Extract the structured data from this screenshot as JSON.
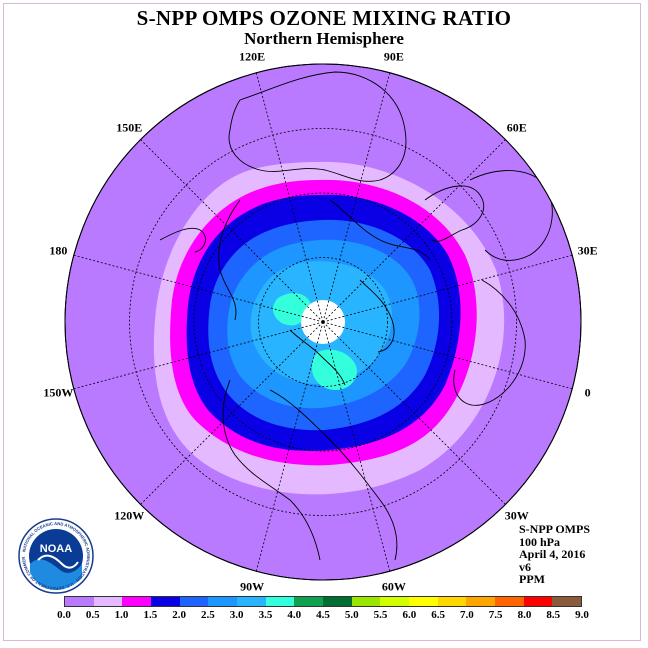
{
  "title": "S-NPP OMPS OZONE MIXING RATIO",
  "subtitle": "Northern Hemisphere",
  "lon_labels": [
    {
      "text": "90E",
      "deg": 75
    },
    {
      "text": "60E",
      "deg": 45
    },
    {
      "text": "30E",
      "deg": 15
    },
    {
      "text": "0",
      "deg": -15
    },
    {
      "text": "30W",
      "deg": -45
    },
    {
      "text": "60W",
      "deg": -75
    },
    {
      "text": "90W",
      "deg": -105
    },
    {
      "text": "120W",
      "deg": -135
    },
    {
      "text": "150W",
      "deg": -165
    },
    {
      "text": "180",
      "deg": 165
    },
    {
      "text": "150E",
      "deg": 135
    },
    {
      "text": "120E",
      "deg": 105
    }
  ],
  "info": {
    "instrument": "S-NPP OMPS",
    "pressure": "100 hPa",
    "date": "April 4, 2016",
    "version": "v6",
    "units": "PPM"
  },
  "logo_text": "NOAA",
  "logo_ring_text": "NATIONAL OCEANIC AND ATMOSPHERIC ADMINISTRATION · U.S. DEPARTMENT OF COMMERCE",
  "colorbar": {
    "labels": [
      "0.0",
      "0.5",
      "1.0",
      "1.5",
      "2.0",
      "2.5",
      "3.0",
      "3.5",
      "4.0",
      "4.5",
      "5.0",
      "5.5",
      "6.0",
      "6.5",
      "7.0",
      "7.5",
      "8.0",
      "8.5",
      "9.0"
    ],
    "colors": [
      "#b97aff",
      "#e5b9ff",
      "#ff00ff",
      "#0a00e6",
      "#1e64ff",
      "#1e96ff",
      "#28b4ff",
      "#33ffdd",
      "#0fa050",
      "#006e32",
      "#9be600",
      "#d2ff00",
      "#ffff00",
      "#ffd700",
      "#ffa500",
      "#ff6400",
      "#ff0000",
      "#8b5a3c"
    ]
  },
  "map_colors": {
    "bg": "#b97aff",
    "c05": "#e5b9ff",
    "c10": "#ff00ff",
    "c15": "#0a00e6",
    "c20": "#1e64ff",
    "c25": "#1e96ff",
    "c30": "#28b4ff",
    "c35": "#33ffdd",
    "nodata": "#ffffff"
  }
}
